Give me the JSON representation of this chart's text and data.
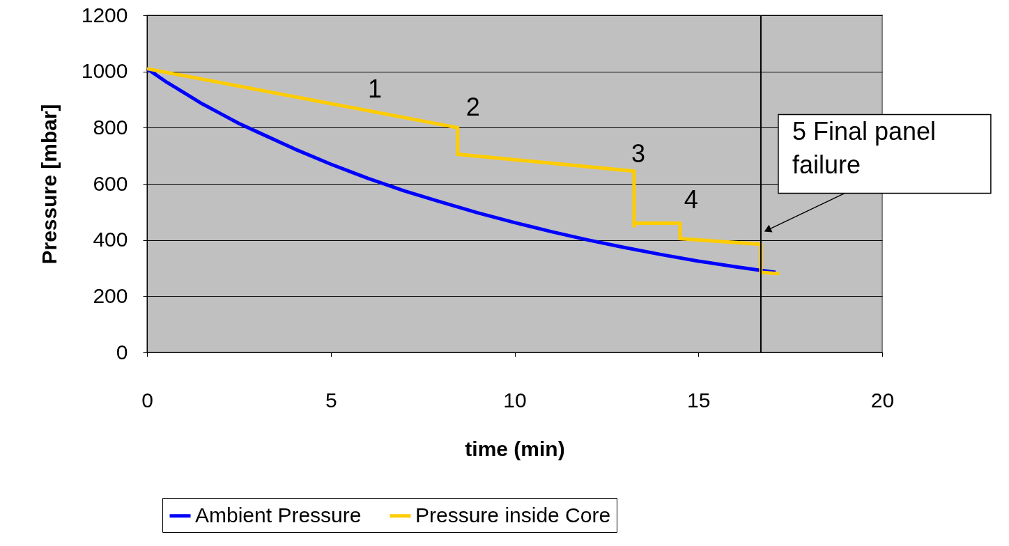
{
  "chart_data": {
    "type": "line",
    "xlabel": "time (min)",
    "ylabel": "Pressure [mbar]",
    "xlim": [
      0,
      20
    ],
    "xticks": [
      0,
      5,
      10,
      15,
      20
    ],
    "ylim": [
      0,
      1200
    ],
    "yticks": [
      0,
      200,
      400,
      600,
      800,
      1000,
      1200
    ],
    "grid": "y",
    "legend": "bottom",
    "marker": "none",
    "line_style": "solid",
    "series": [
      {
        "name": "Ambient Pressure",
        "color": "#0000ff",
        "x": [
          0,
          0.5,
          1,
          1.5,
          2,
          2.5,
          3,
          4,
          5,
          6,
          7,
          8,
          9,
          10,
          11,
          12,
          13,
          14,
          15,
          16,
          16.7,
          17.1
        ],
        "values": [
          1010,
          965,
          925,
          885,
          850,
          815,
          785,
          725,
          670,
          620,
          575,
          535,
          497,
          462,
          430,
          400,
          373,
          348,
          325,
          305,
          292,
          285
        ]
      },
      {
        "name": "Pressure inside Core",
        "color": "#ffcc00",
        "x": [
          0,
          8.45,
          8.45,
          8.5,
          13.25,
          13.25,
          13.3,
          14.5,
          14.5,
          16.7,
          16.7,
          17.2
        ],
        "values": [
          1010,
          800,
          705,
          705,
          645,
          450,
          460,
          460,
          405,
          385,
          285,
          280
        ]
      }
    ],
    "ref_lines": [
      {
        "axis": "x",
        "value": 16.7,
        "color": "#000000"
      }
    ],
    "annotations": [
      {
        "text": "1",
        "x": 6.2,
        "y": 856
      },
      {
        "text": "2",
        "x": 8.45,
        "y": 800
      },
      {
        "text": "3",
        "x": 13.25,
        "y": 645
      },
      {
        "text": "4",
        "x": 14.5,
        "y": 460
      },
      {
        "text": "5 Final panel failure",
        "x": 16.7,
        "y": 430
      }
    ]
  }
}
